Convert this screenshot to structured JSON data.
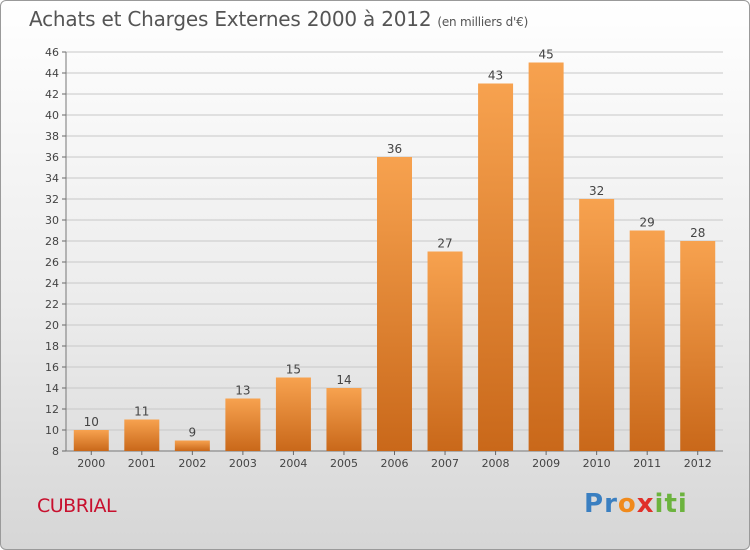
{
  "title": "Achats et Charges Externes 2000 à 2012",
  "unit": "(en milliers d'€)",
  "entity": "CUBRIAL",
  "logo": {
    "letters": [
      "P",
      "r",
      "o",
      "x",
      "i",
      "t",
      "i"
    ],
    "colors": [
      "#3a7fc1",
      "#3a7fc1",
      "#f08a1c",
      "#e0302a",
      "#6cb33e",
      "#6cb33e",
      "#6cb33e"
    ]
  },
  "colors": {
    "bar_light": "#f7a24f",
    "bar_dark": "#c9681a",
    "grid": "#c8c8c8",
    "text": "#444444"
  },
  "chart_data": {
    "type": "bar",
    "categories": [
      "2000",
      "2001",
      "2002",
      "2003",
      "2004",
      "2005",
      "2006",
      "2007",
      "2008",
      "2009",
      "2010",
      "2011",
      "2012"
    ],
    "values": [
      10,
      11,
      9,
      13,
      15,
      14,
      36,
      27,
      43,
      45,
      32,
      29,
      28
    ],
    "ylim": [
      8,
      46
    ],
    "yticks": [
      8,
      10,
      12,
      14,
      16,
      18,
      20,
      22,
      24,
      26,
      28,
      30,
      32,
      34,
      36,
      38,
      40,
      42,
      44,
      46
    ],
    "grid": true,
    "data_labels": true
  }
}
